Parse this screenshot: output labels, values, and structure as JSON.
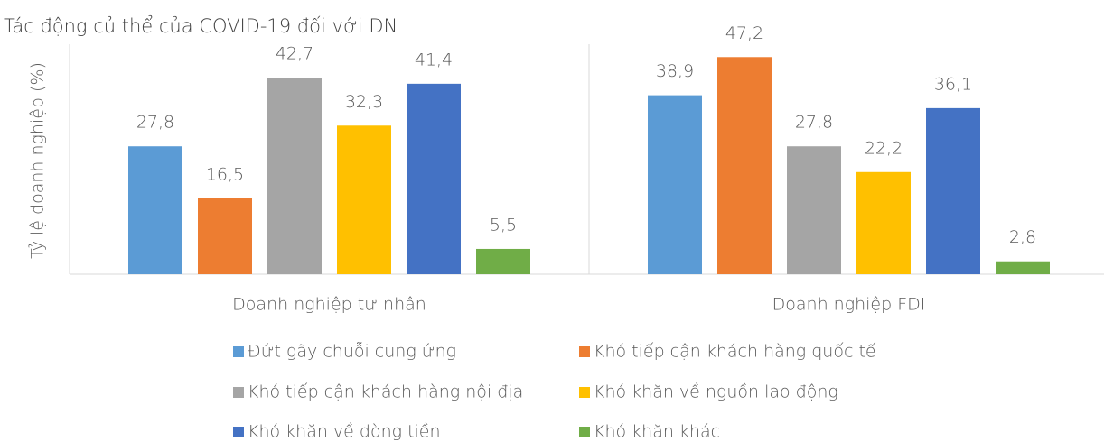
{
  "chart_data": {
    "type": "bar",
    "title": "Tác động củ thể của COVID-19 đối với DN",
    "y_label": "Tỷ lệ doanh nghiệp (%)",
    "categories": [
      "Doanh nghiệp tư nhân",
      "Doanh nghiệp FDI"
    ],
    "ylim": [
      0,
      50
    ],
    "series": [
      {
        "name": "Đứt gãy chuỗi cung ứng",
        "color": "#5b9bd5",
        "values": [
          27.8,
          38.9
        ],
        "value_labels": [
          "27,8",
          "38,9"
        ]
      },
      {
        "name": "Khó tiếp cận khách hàng quốc tế",
        "color": "#ed7d31",
        "values": [
          16.5,
          47.2
        ],
        "value_labels": [
          "16,5",
          "47,2"
        ]
      },
      {
        "name": "Khó tiếp cận khách hàng nội địa",
        "color": "#a5a5a5",
        "values": [
          42.7,
          27.8
        ],
        "value_labels": [
          "42,7",
          "27,8"
        ]
      },
      {
        "name": "Khó khăn về nguồn lao động",
        "color": "#ffc000",
        "values": [
          32.3,
          22.2
        ],
        "value_labels": [
          "32,3",
          "22,2"
        ]
      },
      {
        "name": "Khó khăn về dòng tiền",
        "color": "#4472c4",
        "values": [
          41.4,
          36.1
        ],
        "value_labels": [
          "41,4",
          "36,1"
        ]
      },
      {
        "name": "Khó khăn khác",
        "color": "#70ad47",
        "values": [
          5.5,
          2.8
        ],
        "value_labels": [
          "5,5",
          "2,8"
        ]
      }
    ],
    "legend": "bottom"
  }
}
